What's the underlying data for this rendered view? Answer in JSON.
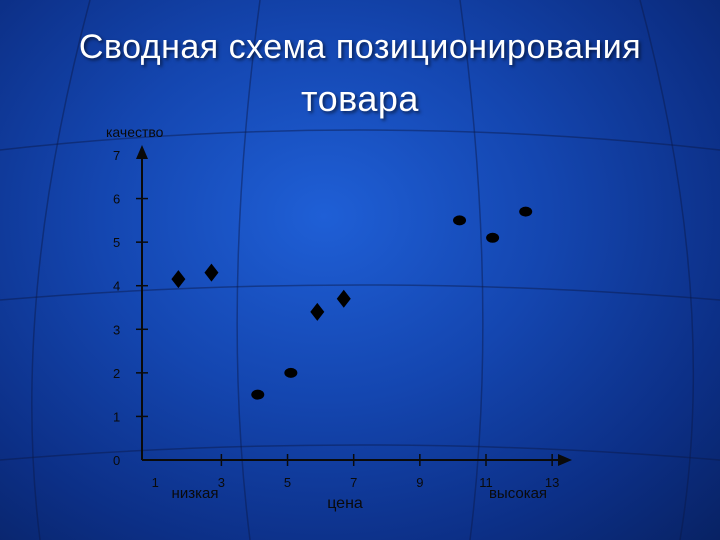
{
  "title_line1": "Сводная схема позиционирования",
  "title_line2": "товара",
  "colors": {
    "background": "#1446b0",
    "axis": "#0a0a0a",
    "marker": "#000000",
    "title": "#ffffff"
  },
  "chart_data": {
    "type": "scatter",
    "title": "Сводная схема позиционирования товара",
    "ylabel": "качество",
    "xlabel": "цена",
    "x_low_label": "низкая",
    "x_high_label": "высокая",
    "xlim": [
      0.6,
      13.6
    ],
    "ylim": [
      0,
      7
    ],
    "x_ticks": [
      1,
      3,
      5,
      7,
      9,
      11,
      13
    ],
    "y_ticks": [
      0,
      1,
      2,
      3,
      4,
      5,
      6,
      7
    ],
    "grid": false,
    "series": [
      {
        "marker": "diamond",
        "points": [
          [
            1.7,
            4.15
          ],
          [
            2.7,
            4.3
          ],
          [
            5.9,
            3.4
          ],
          [
            6.7,
            3.7
          ]
        ]
      },
      {
        "marker": "circle",
        "points": [
          [
            4.1,
            1.5
          ],
          [
            5.1,
            2.0
          ],
          [
            10.2,
            5.5
          ],
          [
            11.2,
            5.1
          ],
          [
            12.2,
            5.7
          ]
        ]
      }
    ]
  }
}
